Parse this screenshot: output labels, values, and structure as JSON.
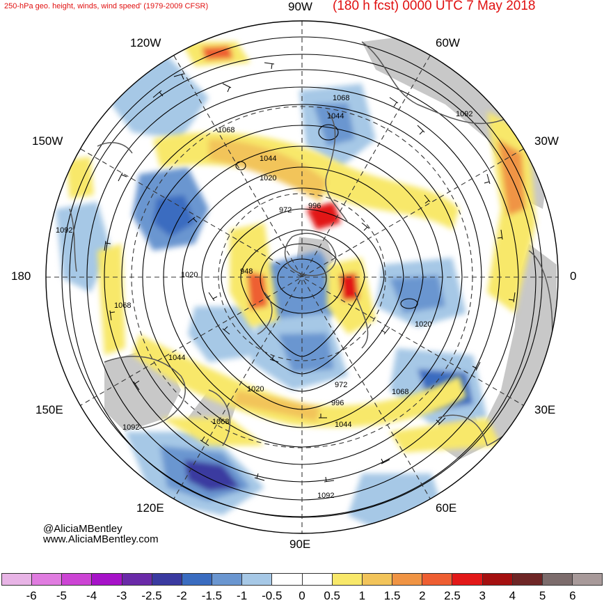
{
  "title": {
    "left": "250-hPa geo. height, winds, wind speed' (1979-2009 CFSR)",
    "right": "(180 h fcst) 0000 UTC 7 May 2018"
  },
  "longitude_labels": {
    "top": "90W",
    "upper_left": "120W",
    "upper_right": "60W",
    "left_upper": "150W",
    "right_upper": "30W",
    "left": "180",
    "right": "0",
    "left_lower": "150E",
    "right_lower": "30E",
    "lower_left": "120E",
    "lower_right": "60E",
    "bottom": "90E"
  },
  "contour_labels": [
    "1068",
    "1044",
    "1092",
    "1068",
    "1044",
    "1020",
    "972",
    "996",
    "1092",
    "948",
    "1020",
    "1068",
    "1020",
    "1044",
    "972",
    "1020",
    "996",
    "1068",
    "1068",
    "1044",
    "1092",
    "1092"
  ],
  "credit": {
    "handle": "@AliciaMBentley",
    "website": "www.AliciaMBentley.com"
  },
  "colorbar": {
    "colors": [
      "#e8b4e6",
      "#e07ce0",
      "#cc44d4",
      "#a612c8",
      "#6a2aa8",
      "#3a3aa0",
      "#3a6cc0",
      "#6a96d0",
      "#a6c8e6",
      "#ffffff",
      "#ffffff",
      "#f8e86a",
      "#f2c45a",
      "#f09444",
      "#ee5e32",
      "#e21818",
      "#a41010",
      "#6e2626",
      "#7c6c6c",
      "#a89a9a"
    ],
    "labels": [
      "-6",
      "-5",
      "-4",
      "-3",
      "-2.5",
      "-2",
      "-1.5",
      "-1",
      "-0.5",
      "0",
      "0.5",
      "1",
      "1.5",
      "2",
      "2.5",
      "3",
      "4",
      "5",
      "6"
    ]
  },
  "colors": {
    "title": "#e01010",
    "land": "#c8c8c8",
    "contour": "#000000"
  }
}
